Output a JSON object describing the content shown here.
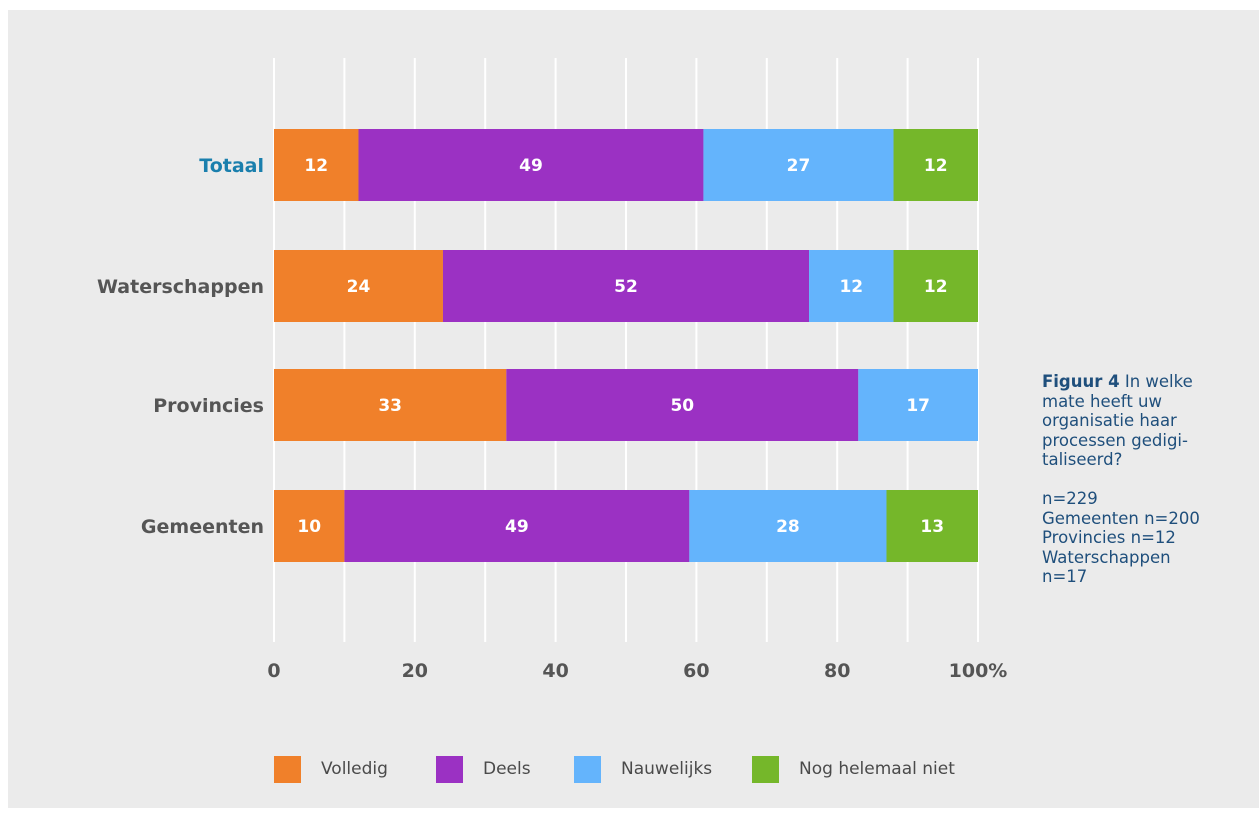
{
  "chart_data": {
    "type": "bar",
    "orientation": "horizontal",
    "stacked": true,
    "categories": [
      "Totaal",
      "Waterschappen",
      "Provincies",
      "Gemeenten"
    ],
    "highlighted_category": "Totaal",
    "series": [
      {
        "name": "Volledig",
        "color": "#f0802a",
        "values": [
          12,
          24,
          33,
          10
        ]
      },
      {
        "name": "Deels",
        "color": "#9b31c3",
        "values": [
          49,
          52,
          50,
          49
        ]
      },
      {
        "name": "Nauwelijks",
        "color": "#64b4fc",
        "values": [
          27,
          12,
          17,
          28
        ]
      },
      {
        "name": "Nog helemaal niet",
        "color": "#75b72a",
        "values": [
          12,
          12,
          null,
          13
        ]
      }
    ],
    "x_ticks": [
      "0",
      "20",
      "40",
      "60",
      "80",
      "100%"
    ],
    "xlim": [
      0,
      100
    ],
    "grid": true,
    "legend_position": "bottom",
    "data_labels": true
  },
  "caption": {
    "figure_label": "Figuur 4",
    "title_rest": " In welke mate heeft uw organisatie haar processen gedigi-taliseerd?",
    "title_lines": [
      "In welke",
      "mate heeft uw",
      "organisatie haar",
      "processen gedigi-",
      "taliseerd?"
    ],
    "stats_lines": [
      "n=229",
      "Gemeenten n=200",
      "Provincies n=12",
      "Waterschappen",
      "n=17"
    ]
  },
  "colors": {
    "background": "#ebebeb",
    "grid": "#ffffff",
    "category_label": "#555555",
    "highlight_label": "#1a7fad",
    "caption_text": "#1f4f7c"
  }
}
